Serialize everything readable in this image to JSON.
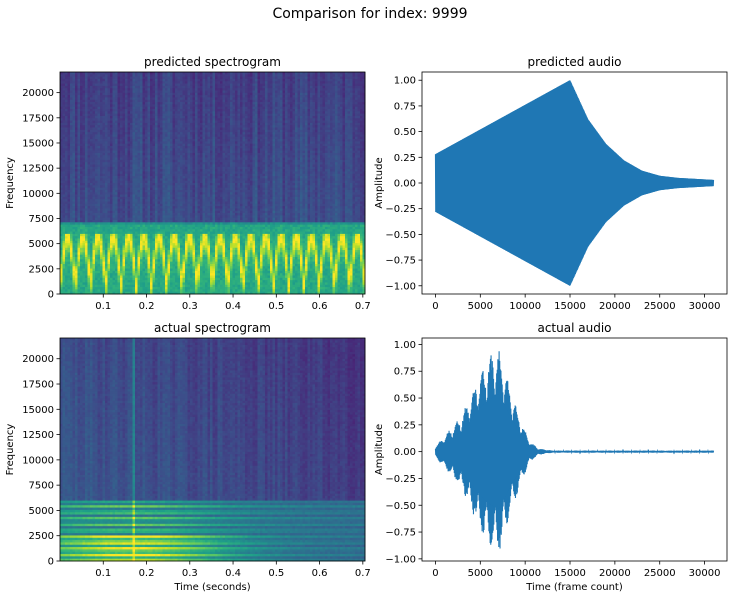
{
  "figure_title": "Comparison for index: 9999",
  "colors": {
    "line": "#1f77b4",
    "viridis_low": "#440154",
    "viridis_mid": "#21918c",
    "viridis_high": "#fde725"
  },
  "chart_data": [
    {
      "id": "pred_spec",
      "type": "heatmap",
      "title": "predicted spectrogram",
      "xlabel": "",
      "ylabel": "Frequency",
      "xlim": [
        0.0,
        0.705
      ],
      "ylim": [
        0,
        22050
      ],
      "xticks": [
        0.1,
        0.2,
        0.3,
        0.4,
        0.5,
        0.6,
        0.7
      ],
      "xtick_labels": [
        "0.1",
        "0.2",
        "0.3",
        "0.4",
        "0.5",
        "0.6",
        "0.7"
      ],
      "yticks": [
        0,
        2500,
        5000,
        7500,
        10000,
        12500,
        15000,
        17500,
        20000
      ],
      "ytick_labels": [
        "0",
        "2500",
        "5000",
        "7500",
        "10000",
        "12500",
        "15000",
        "17500",
        "20000"
      ],
      "description_values": {
        "band_low_hz": 0,
        "band_high_hz": 6800,
        "modulation_cycles": 20
      },
      "colormap": "viridis"
    },
    {
      "id": "pred_audio",
      "type": "line",
      "title": "predicted audio",
      "xlabel": "",
      "ylabel": "Amplitude",
      "xlim": [
        -1500,
        32500
      ],
      "ylim": [
        -1.08,
        1.08
      ],
      "xticks": [
        0,
        5000,
        10000,
        15000,
        20000,
        25000,
        30000
      ],
      "xtick_labels": [
        "0",
        "5000",
        "10000",
        "15000",
        "20000",
        "25000",
        "30000"
      ],
      "yticks": [
        -1.0,
        -0.75,
        -0.5,
        -0.25,
        0.0,
        0.25,
        0.5,
        0.75,
        1.0
      ],
      "ytick_labels": [
        "−1.00",
        "−0.75",
        "−0.50",
        "−0.25",
        "0.00",
        "0.25",
        "0.50",
        "0.75",
        "1.00"
      ],
      "envelope": {
        "x": [
          0,
          15000,
          17000,
          19000,
          21000,
          23000,
          25000,
          27000,
          29000,
          31000
        ],
        "y": [
          0.28,
          1.0,
          0.62,
          0.38,
          0.22,
          0.12,
          0.07,
          0.05,
          0.04,
          0.03
        ]
      }
    },
    {
      "id": "actual_spec",
      "type": "heatmap",
      "title": "actual spectrogram",
      "xlabel": "Time (seconds)",
      "ylabel": "Frequency",
      "xlim": [
        0.0,
        0.705
      ],
      "ylim": [
        0,
        22050
      ],
      "xticks": [
        0.1,
        0.2,
        0.3,
        0.4,
        0.5,
        0.6,
        0.7
      ],
      "xtick_labels": [
        "0.1",
        "0.2",
        "0.3",
        "0.4",
        "0.5",
        "0.6",
        "0.7"
      ],
      "yticks": [
        0,
        2500,
        5000,
        7500,
        10000,
        12500,
        15000,
        17500,
        20000
      ],
      "ytick_labels": [
        "0",
        "2500",
        "5000",
        "7500",
        "10000",
        "12500",
        "15000",
        "17500",
        "20000"
      ],
      "description_values": {
        "harmonic_spacing_hz": 600,
        "harmonic_top_hz": 6000,
        "peak_time_s": 0.17
      },
      "colormap": "viridis"
    },
    {
      "id": "actual_audio",
      "type": "line",
      "title": "actual audio",
      "xlabel": "Time (frame count)",
      "ylabel": "Amplitude",
      "xlim": [
        -1500,
        32500
      ],
      "ylim": [
        -1.02,
        1.06
      ],
      "xticks": [
        0,
        5000,
        10000,
        15000,
        20000,
        25000,
        30000
      ],
      "xtick_labels": [
        "0",
        "5000",
        "10000",
        "15000",
        "20000",
        "25000",
        "30000"
      ],
      "yticks": [
        -1.0,
        -0.75,
        -0.5,
        -0.25,
        0.0,
        0.25,
        0.5,
        0.75,
        1.0
      ],
      "ytick_labels": [
        "−1.00",
        "−0.75",
        "−0.50",
        "−0.25",
        "0.00",
        "0.25",
        "0.50",
        "0.75",
        "1.00"
      ],
      "envelope": {
        "x": [
          0,
          1000,
          2000,
          3000,
          4000,
          5000,
          6000,
          7000,
          7500,
          8500,
          9500,
          10500,
          11500,
          13000,
          31000
        ],
        "y": [
          0.05,
          0.15,
          0.25,
          0.35,
          0.55,
          0.75,
          0.88,
          0.98,
          0.85,
          0.55,
          0.3,
          0.1,
          0.03,
          0.01,
          0.01
        ]
      }
    }
  ]
}
